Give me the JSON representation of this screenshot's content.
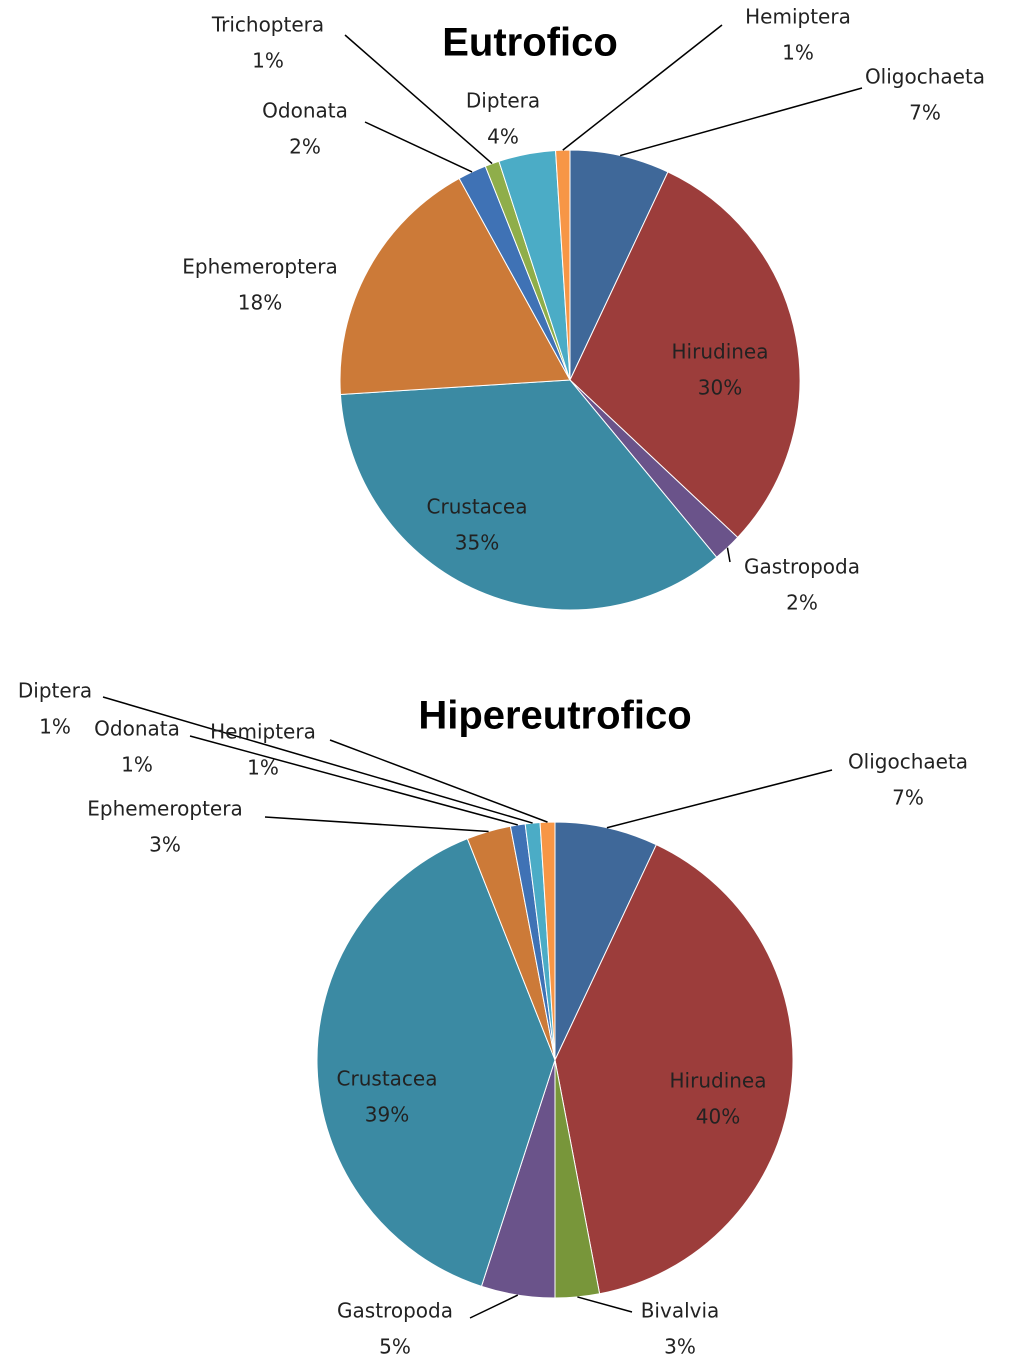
{
  "chart_data": [
    {
      "type": "pie",
      "title": "Eutrofico",
      "categories": [
        "Oligochaeta",
        "Hirudinea",
        "Gastropoda",
        "Crustacea",
        "Ephemeroptera",
        "Odonata",
        "Trichoptera",
        "Diptera",
        "Hemiptera"
      ],
      "values": [
        7,
        30,
        2,
        35,
        18,
        2,
        1,
        4,
        1
      ],
      "value_labels": [
        "7%",
        "30%",
        "2%",
        "35%",
        "18%",
        "2%",
        "1%",
        "4%",
        "1%"
      ],
      "colors": [
        "#3f6899",
        "#9c3d3b",
        "#6a538a",
        "#3b8aa3",
        "#cc7a38",
        "#3f72b5",
        "#8fae4a",
        "#4bacc6",
        "#f79646"
      ]
    },
    {
      "type": "pie",
      "title": "Hipereutrofico",
      "categories": [
        "Oligochaeta",
        "Hirudinea",
        "Bivalvia",
        "Gastropoda",
        "Crustacea",
        "Ephemeroptera",
        "Odonata",
        "Diptera",
        "Hemiptera"
      ],
      "values": [
        7,
        40,
        3,
        5,
        39,
        3,
        1,
        1,
        1
      ],
      "value_labels": [
        "7%",
        "40%",
        "3%",
        "5%",
        "39%",
        "3%",
        "1%",
        "1%",
        "1%"
      ],
      "colors": [
        "#3f6899",
        "#9c3d3b",
        "#78963a",
        "#6a538a",
        "#3b8aa3",
        "#cc7a38",
        "#3f72b5",
        "#4bacc6",
        "#f79646"
      ]
    }
  ]
}
